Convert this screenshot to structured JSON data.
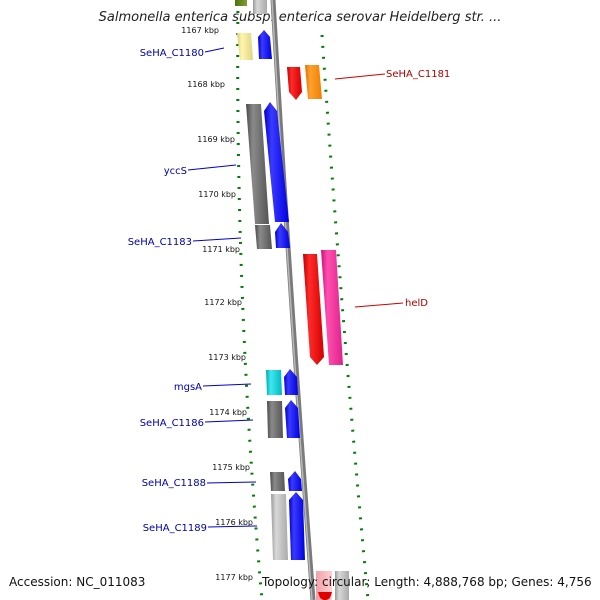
{
  "title": "Salmonella enterica subsp. enterica serovar Heidelberg str. ...",
  "accession": "Accession: NC_011083",
  "topology": "Topology: circular; Length: 4,888,768 bp; Genes: 4,756",
  "ruler": [
    "1167 kbp",
    "1168 kbp",
    "1169 kbp",
    "1170 kbp",
    "1171 kbp",
    "1172 kbp",
    "1173 kbp",
    "1174 kbp",
    "1175 kbp",
    "1176 kbp",
    "1177 kbp"
  ],
  "gene_labels": {
    "left": [
      "SeHA_C1180",
      "yccS",
      "SeHA_C1183",
      "mgsA",
      "SeHA_C1186",
      "SeHA_C1188",
      "SeHA_C1189"
    ],
    "right": [
      "SeHA_C1181",
      "helD"
    ]
  },
  "colors": {
    "left_label": "#0000aa",
    "right_label": "#aa0000",
    "dotted_track": "#008000",
    "backbone": "#808080"
  }
}
